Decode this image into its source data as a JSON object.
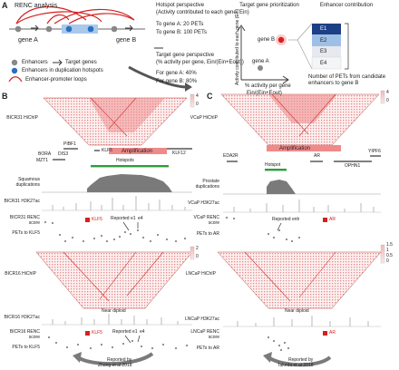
{
  "panel_a": {
    "letter": "A",
    "renc_title": "RENC analysis",
    "gene_a": "gene A",
    "gene_b": "gene B",
    "hotspot_persp": {
      "title": "Hotspot perspective",
      "sub": "(Activity contributed to each gene, Ein)",
      "line_a": "To gene A: 20 PETs",
      "line_b": "To gene B: 100 PETs"
    },
    "legend": {
      "enhancers": "Enhancers",
      "target_genes": "Target genes",
      "dup_hotspots": "Enhancers in duplication hotspots",
      "loops": "Enhancer-promoter loops"
    },
    "target_persp": {
      "title": "Target gene perspective",
      "sub": "(% activity per gene, Ein/(Ein+Eout))",
      "line_a": "For gene A: 40%",
      "line_b": "For gene B: 80%"
    },
    "prioritization": {
      "title": "Target gene prioritization",
      "y_axis": "Activity contributed to each gene (Ein)",
      "x_axis_1": "% activity per gene",
      "x_axis_2": "Ein/(Ein+Eout)",
      "gene_b": "gene B",
      "gene_a": "gene A"
    },
    "contribution": {
      "title": "Enhancer contribution",
      "items": [
        "E1",
        "E2",
        "E3",
        "E4"
      ],
      "note": "Number of PETs from candidate enhancers to gene B"
    }
  },
  "panel_b": {
    "letter": "B",
    "hichip_top": "BICR31 HiChIP",
    "scale_top": [
      "4",
      "0"
    ],
    "genes": [
      "PIBF1",
      "KLF5",
      "KLF12",
      "BORA",
      "DIS3",
      "MZT1"
    ],
    "amplification": "Amplification",
    "hotspots": "Hotspots",
    "squamous_dup": "Squamous duplications",
    "h3k27ac_top": "BICR31 H3K27ac",
    "renc_top": "BICR31 RENC score",
    "klf5_top": "KLF5",
    "reported": "Reported e1",
    "e4": "e4",
    "pets_top": "PETs to KLF5",
    "hichip_bot": "BICR16 HiChIP",
    "scale_bot": [
      "2",
      "0"
    ],
    "near_diploid": "Near diploid",
    "h3k27ac_bot": "BICR16 H3K27ac",
    "renc_bot": "BICR16 RENC score",
    "klf5_bot": "KLF5",
    "reported_bot": "Reported e1",
    "e4_bot": "e4",
    "pets_bot": "PETs to KLF5",
    "citation_1": "Reported by",
    "citation_2": "Zhang et al 2018"
  },
  "panel_c": {
    "letter": "C",
    "hichip_top": "VCaP HiChIP",
    "scale_top": [
      "4",
      "0"
    ],
    "genes": [
      "EDA2R",
      "AR",
      "OPHN1",
      "YIPF6"
    ],
    "amplification": "Amplification",
    "hotspot": "Hotspot",
    "prostate_dup": "Prostate duplications",
    "h3k27ac_top": "VCaP H3K27ac",
    "renc_top": "VCaP RENC score",
    "ar_top": "AR",
    "reported": "Reported enh",
    "pets_top": "PETs to AR",
    "hichip_bot": "LNCaP HiChIP",
    "scale_bot": [
      "1.5",
      "1",
      "0.5",
      "0"
    ],
    "near_diploid": "Near diploid",
    "h3k27ac_bot": "LNCaP H3K27ac",
    "renc_bot": "LNCaP RENC score",
    "ar_bot": "AR",
    "pets_bot": "PETs to AR",
    "citation_1": "Reported by",
    "citation_2": "Takeda et al 2018"
  },
  "colors": {
    "red": "#d62020",
    "heat": "#e35050",
    "green": "#2e9e3a",
    "blue": "#2a6fc2",
    "grey": "#777777"
  }
}
